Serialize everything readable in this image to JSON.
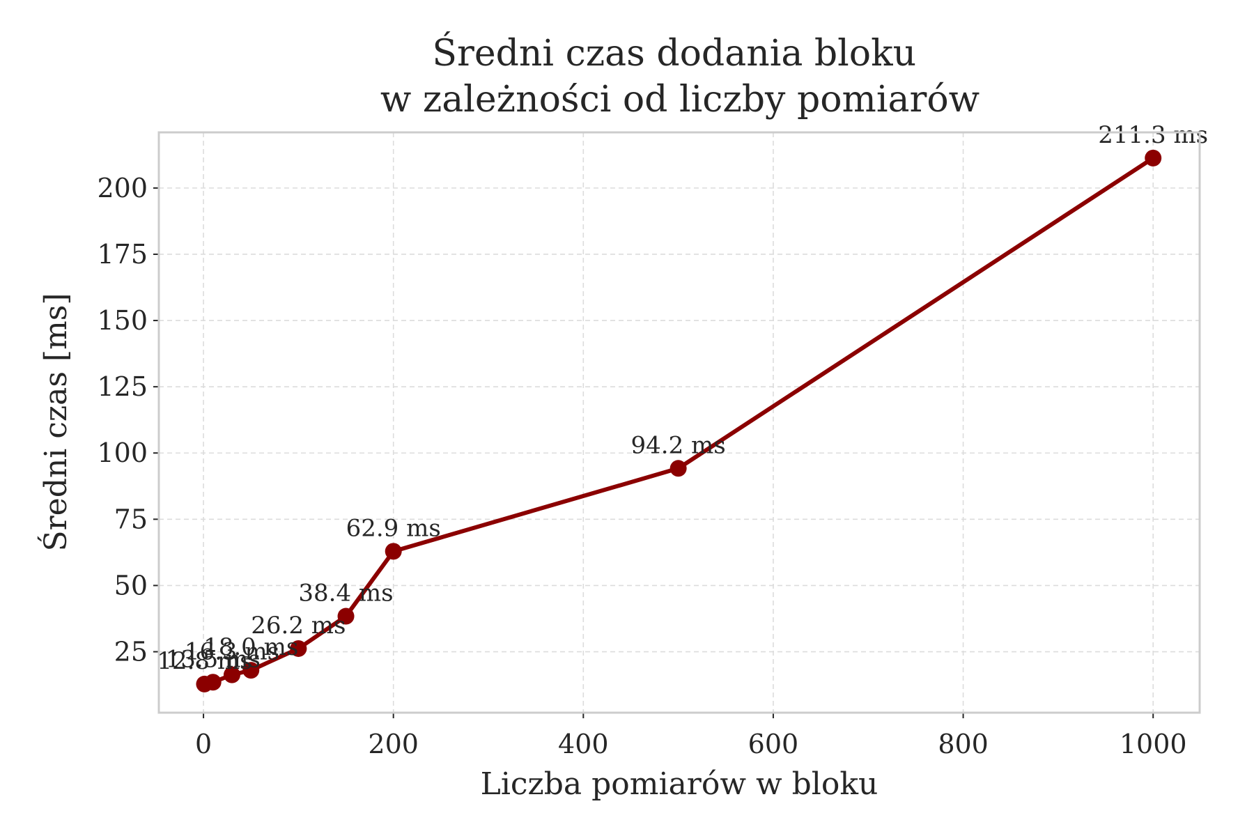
{
  "chart_data": {
    "type": "line",
    "title": "Średni czas dodania bloku\nw zależności od liczby pomiarów",
    "xlabel": "Liczba pomiarów w bloku",
    "ylabel": "Średni czas [ms]",
    "x": [
      1,
      10,
      30,
      50,
      100,
      150,
      200,
      500,
      1000
    ],
    "series": [
      {
        "values": [
          12.8,
          13.5,
          16.3,
          18.0,
          26.2,
          38.4,
          62.9,
          94.2,
          211.3
        ],
        "labels": [
          "12.8 ms",
          "13.5 ms",
          "16.3 ms",
          "18.0 ms",
          "26.2 ms",
          "38.4 ms",
          "62.9 ms",
          "94.2 ms",
          "211.3 ms"
        ],
        "color": "#8b0000",
        "marker": "circle"
      }
    ],
    "xlim": [
      -47,
      1049
    ],
    "ylim": [
      2,
      221
    ],
    "xticks": [
      0,
      200,
      400,
      600,
      800,
      1000
    ],
    "yticks": [
      25,
      50,
      75,
      100,
      125,
      150,
      175,
      200
    ],
    "grid": true,
    "legend": "none"
  }
}
